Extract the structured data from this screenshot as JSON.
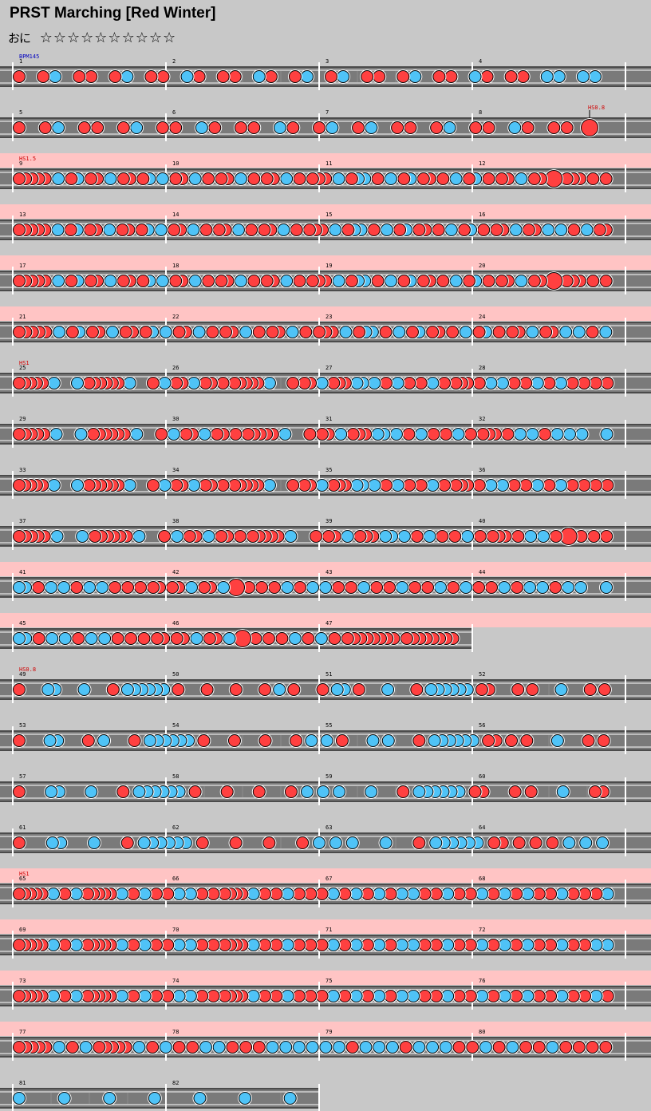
{
  "header": {
    "title": "PRST Marching [Red Winter]",
    "course_glyph": "おに",
    "stars": "☆☆☆☆☆☆☆☆☆☆"
  },
  "colors": {
    "background": "#c8c8c8",
    "lane": "#7a7a7a",
    "gogo_band": "#ffc4c4",
    "don": "#ff4040",
    "ka": "#4fc3f7",
    "command_red": "#d00000",
    "command_blue": "#0000c0"
  },
  "chart_data": {
    "type": "note-chart",
    "bpm_label": "BPM145",
    "rows": [
      {
        "start": 1,
        "measures": 4,
        "command": "",
        "gogo": false,
        "pattern": "1 12 11 12 11 21 11 21 12 12 11 12 11 21 11 22 22"
      },
      {
        "start": 5,
        "measures": 4,
        "command": "",
        "gogo": false,
        "pattern": "1 12 11 12 11 21 11 21 12 12 11 12 11 21 11 M",
        "inline_command": "HS0.8"
      },
      {
        "start": 9,
        "measures": 4,
        "command": "HS1.5",
        "gogo": true,
        "pattern": "11111 2 12 11 2 11 12 2 11 2 1 11 2 1 11 2 1 111 2 122 1 2 12 11 1 2 12 1 11 2 11 B 111 1 1"
      },
      {
        "start": 13,
        "measures": 4,
        "command": "",
        "gogo": true,
        "pattern": "11111 2 12 11 2 11 12 2 11 2 1 11 2 1 11 2 1 111 2 122 1 2 12 11 1 2 12 1 11 2 11 2 2 1 2 11"
      },
      {
        "start": 17,
        "measures": 4,
        "command": "",
        "gogo": true,
        "pattern": "11111 2 12 11 2 11 12 2 11 2 1 11 2 1 11 2 1 111 2 122 1 2 12 11 1 2 12 1 11 2 11 B 111 1 1"
      },
      {
        "start": 21,
        "measures": 4,
        "command": "",
        "gogo": true,
        "pattern": "11111 2 12 11 2 11 12 2 11 2 1 11 2 1 11 2 1 111 2 122 1 2 12 11 1 2 12 1 11 2 11 2 2 1 2"
      },
      {
        "start": 25,
        "measures": 4,
        "command": "HS1",
        "gogo": false,
        "pattern": "11111 2 x 2 111111 2 x 1 2 11 2 11 1 11111 2 x 1 11 2 111 22 2 1 2 1 1 2 1 111 1 2 2 1 1 2 1 2 1 1 1 1"
      },
      {
        "start": 29,
        "measures": 4,
        "command": "",
        "gogo": false,
        "pattern": "11111 2 x 2 111111 2 x 1 2 11 2 11 1 11111 2 x 1 11 2 111 22 2 1 2 1 1 2 1 111 1 2 2 1 2 2 2 x 2"
      },
      {
        "start": 33,
        "measures": 4,
        "command": "",
        "gogo": false,
        "pattern": "11111 2 x 2 111111 2 x 1 2 11 2 11 1 11111 2 x 1 11 2 111 22 2 1 2 1 1 2 1 111 1 2 2 1 1 2 1 2 1 1 1 1"
      },
      {
        "start": 37,
        "measures": 4,
        "command": "",
        "gogo": false,
        "pattern": "11111 2 x 2 111111 2 x 1 2 11 2 11 1 11111 2 x 1 11 2 111 22 2 1 2 1 1 2 1 111 1 2 2 1 B 1 1 1"
      },
      {
        "start": 41,
        "measures": 4,
        "command": "",
        "gogo": true,
        "pattern": "22 1 2 2 1 2 2 1 1 1 11 11 2 11 2 B 1 1 1 2 1 2 2 1 1 2 1 1 2 1 1 2 1 2 1 1 2 1 2 2 1 2 2 x 2"
      },
      {
        "start": 45,
        "measures": 3,
        "command": "",
        "gogo": true,
        "pattern": "22 1 2 2 1 2 2 1 1 1 11 11 2 11 2 B 1 1 1 2 1 2 1 11111111 11111111"
      },
      {
        "start": 49,
        "measures": 4,
        "command": "HS0.8",
        "gogo": false,
        "pattern": "1 x 22 x 2 x 1 222222 1 x 1 x 1 x 1 2 1 x 1 22 1 x 2 x 1 222222 11 x 1 1 x 2 x 1 1"
      },
      {
        "start": 53,
        "measures": 4,
        "command": "",
        "gogo": false,
        "pattern": "1 x 22 x 1 2 x 1 222222 1 x 1 x 1 x 1 2 2 1 x 2 2 x 1 222222 11 1 1 x 2 x 1 1"
      },
      {
        "start": 57,
        "measures": 4,
        "command": "",
        "gogo": false,
        "pattern": "1 x 22 x 2 x 1 222222 1 x 1 x 1 x 1 2 2 2 x 2 x 1 222222 11 x 1 1 x 2 x 11"
      },
      {
        "start": 61,
        "measures": 4,
        "command": "",
        "gogo": false,
        "pattern": "1 x 22 x 2 x 1 222222 1 x 1 x 1 x 1 2 2 2 x 2 x 1 222222 11 1 1 1 2 2 2"
      },
      {
        "start": 65,
        "measures": 4,
        "command": "HS1",
        "gogo": true,
        "pattern": "11111 2 1 2 11111 2 1 2 1 1 2 2 1 1 1111 2 1 1 2 1 1 1 2 1 2 1 2 1 2 2 1 1 2 1 1 2 1 2 1 2 1 1 2 1 1 1 2"
      },
      {
        "start": 69,
        "measures": 4,
        "command": "",
        "gogo": true,
        "pattern": "11111 2 1 2 11111 2 1 2 1 1 2 2 1 1 1111 2 1 1 2 1 1 1 2 1 2 1 2 1 2 2 1 1 2 1 1 2 1 2 1 2 1 1 2 1 1 2 2"
      },
      {
        "start": 73,
        "measures": 4,
        "command": "",
        "gogo": true,
        "pattern": "11111 2 1 2 11111 2 1 2 1 1 2 2 1 1 1111 2 1 1 2 1 1 1 2 1 2 1 2 1 2 2 1 1 2 1 1 2 1 2 1 2 1 1 2 1 1 2 1"
      },
      {
        "start": 77,
        "measures": 4,
        "command": "",
        "gogo": true,
        "pattern": "11111 2 1 2 11111 2 1 2 1 1 2 2 1 1 1 2 2 2 2 2 2 1 2 2 2 1 2 2 2 1 1 2 1 2 1 1 2 1 1 1 1"
      },
      {
        "start": 81,
        "measures": 2,
        "command": "",
        "gogo": false,
        "pattern": "2 x 2 x 2 x 2 x 2 x 2 x 2"
      }
    ]
  }
}
